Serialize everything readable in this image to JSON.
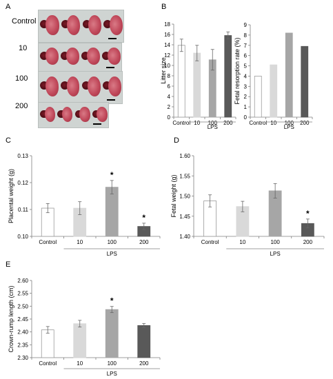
{
  "panel_a": {
    "letter": "A",
    "rows": [
      {
        "label": "Control",
        "fetus_count": 4
      },
      {
        "label": "10",
        "fetus_count": 4
      },
      {
        "label": "100",
        "fetus_count": 4
      },
      {
        "label": "200",
        "fetus_count": 4
      }
    ]
  },
  "chart_data": [
    {
      "id": "B1",
      "letter": "B",
      "type": "bar",
      "title": "",
      "ylabel": "Litter size",
      "xlabel": "",
      "group_label": "LPS",
      "categories": [
        "Control",
        "10",
        "100",
        "200"
      ],
      "values": [
        13.9,
        12.4,
        11.1,
        15.8
      ],
      "errors": [
        1.2,
        1.5,
        2.0,
        0.7
      ],
      "ylim": [
        0,
        18
      ],
      "yticks": [
        "0",
        "2",
        "4",
        "6",
        "8",
        "10",
        "12",
        "14",
        "16",
        "18"
      ],
      "colors": [
        "#ffffff",
        "#d9d9d9",
        "#a6a6a6",
        "#595959"
      ],
      "significant": [
        false,
        false,
        false,
        false
      ]
    },
    {
      "id": "B2",
      "letter": "",
      "type": "bar",
      "title": "",
      "ylabel": "Fetal resorption rate (%)",
      "xlabel": "",
      "group_label": "LPS",
      "categories": [
        "Control",
        "10",
        "100",
        "200"
      ],
      "values": [
        4.0,
        5.1,
        8.2,
        6.9
      ],
      "errors": [
        0,
        0,
        0,
        0
      ],
      "ylim": [
        0,
        9
      ],
      "yticks": [
        "0",
        "1",
        "2",
        "3",
        "4",
        "5",
        "6",
        "7",
        "8",
        "9"
      ],
      "colors": [
        "#ffffff",
        "#d9d9d9",
        "#a6a6a6",
        "#595959"
      ],
      "significant": [
        false,
        false,
        false,
        false
      ]
    },
    {
      "id": "C",
      "letter": "C",
      "type": "bar",
      "title": "",
      "ylabel": "Placental weight (g)",
      "xlabel": "",
      "group_label": "LPS",
      "categories": [
        "Control",
        "10",
        "100",
        "200"
      ],
      "values": [
        0.1105,
        0.1105,
        0.1183,
        0.1037
      ],
      "errors": [
        0.0017,
        0.0024,
        0.0025,
        0.0012
      ],
      "ylim": [
        0.1,
        0.13
      ],
      "yticks": [
        "0.10",
        "0.11",
        "0.12",
        "0.13"
      ],
      "colors": [
        "#ffffff",
        "#d9d9d9",
        "#a6a6a6",
        "#595959"
      ],
      "significant": [
        false,
        false,
        true,
        true
      ]
    },
    {
      "id": "D",
      "letter": "D",
      "type": "bar",
      "title": "",
      "ylabel": "Fetal weight (g)",
      "xlabel": "",
      "group_label": "LPS",
      "categories": [
        "Control",
        "10",
        "100",
        "200"
      ],
      "values": [
        1.488,
        1.474,
        1.513,
        1.432
      ],
      "errors": [
        0.015,
        0.013,
        0.018,
        0.011
      ],
      "ylim": [
        1.4,
        1.6
      ],
      "yticks": [
        "1.40",
        "1.45",
        "1.50",
        "1.55",
        "1.60"
      ],
      "colors": [
        "#ffffff",
        "#d9d9d9",
        "#a6a6a6",
        "#595959"
      ],
      "significant": [
        false,
        false,
        false,
        true
      ]
    },
    {
      "id": "E",
      "letter": "E",
      "type": "bar",
      "title": "",
      "ylabel": "Crown-rump length  (cm)",
      "xlabel": "",
      "group_label": "LPS",
      "categories": [
        "Control",
        "10",
        "100",
        "200"
      ],
      "values": [
        2.408,
        2.432,
        2.487,
        2.425
      ],
      "errors": [
        0.013,
        0.013,
        0.012,
        0.008
      ],
      "ylim": [
        2.3,
        2.6
      ],
      "yticks": [
        "2.30",
        "2.35",
        "2.40",
        "2.45",
        "2.50",
        "2.55",
        "2.60"
      ],
      "colors": [
        "#ffffff",
        "#d9d9d9",
        "#a6a6a6",
        "#595959"
      ],
      "significant": [
        false,
        false,
        true,
        false
      ]
    }
  ],
  "significance_marker": "*"
}
